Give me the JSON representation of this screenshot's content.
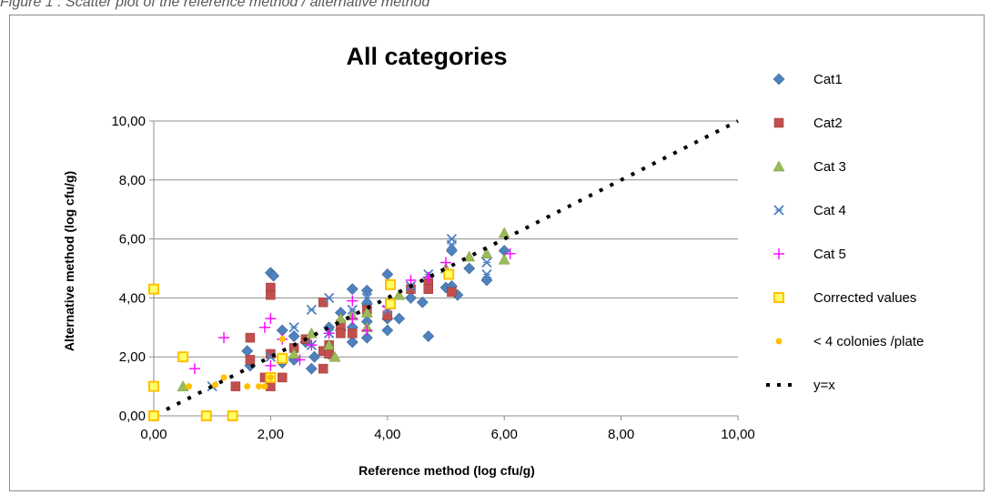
{
  "caption": "Figure 1 : Scatter plot of the reference method / alternative method",
  "chart_data": {
    "type": "scatter",
    "title": "All categories",
    "xlabel": "Reference method (log cfu/g)",
    "ylabel": "Alternative method (log cfu/g)",
    "xlim": [
      0,
      10
    ],
    "ylim": [
      0,
      10
    ],
    "xticks": [
      "0,00",
      "2,00",
      "4,00",
      "6,00",
      "8,00",
      "10,00"
    ],
    "yticks": [
      "0,00",
      "2,00",
      "4,00",
      "6,00",
      "8,00",
      "10,00"
    ],
    "grid": "horizontal",
    "legend_position": "right",
    "series": [
      {
        "name": "Cat1",
        "marker": "diamond",
        "color": "#4f81bd",
        "points": [
          [
            1.6,
            2.2
          ],
          [
            1.65,
            1.7
          ],
          [
            2.0,
            4.85
          ],
          [
            2.05,
            4.75
          ],
          [
            2.2,
            2.9
          ],
          [
            2.2,
            1.8
          ],
          [
            2.4,
            2.7
          ],
          [
            2.4,
            1.9
          ],
          [
            2.6,
            2.5
          ],
          [
            2.7,
            1.6
          ],
          [
            2.75,
            2.0
          ],
          [
            3.0,
            2.1
          ],
          [
            3.0,
            3.0
          ],
          [
            3.2,
            3.5
          ],
          [
            3.2,
            2.9
          ],
          [
            3.4,
            4.3
          ],
          [
            3.4,
            3.0
          ],
          [
            3.4,
            2.5
          ],
          [
            3.65,
            4.25
          ],
          [
            3.65,
            3.8
          ],
          [
            3.65,
            3.2
          ],
          [
            3.65,
            2.65
          ],
          [
            4.0,
            4.8
          ],
          [
            4.0,
            3.3
          ],
          [
            4.0,
            2.9
          ],
          [
            4.2,
            3.3
          ],
          [
            4.4,
            4.0
          ],
          [
            4.6,
            3.85
          ],
          [
            4.7,
            2.7
          ],
          [
            5.0,
            4.35
          ],
          [
            5.1,
            5.6
          ],
          [
            5.1,
            4.4
          ],
          [
            5.2,
            4.1
          ],
          [
            5.4,
            5.0
          ],
          [
            5.7,
            4.6
          ],
          [
            6.0,
            5.6
          ]
        ]
      },
      {
        "name": "Cat2",
        "marker": "square",
        "color": "#c0504d",
        "points": [
          [
            1.4,
            1.0
          ],
          [
            1.65,
            2.65
          ],
          [
            1.65,
            1.9
          ],
          [
            1.9,
            1.3
          ],
          [
            2.0,
            4.35
          ],
          [
            2.0,
            4.1
          ],
          [
            2.0,
            2.1
          ],
          [
            2.0,
            1.0
          ],
          [
            2.2,
            1.3
          ],
          [
            2.4,
            2.3
          ],
          [
            2.6,
            2.6
          ],
          [
            2.9,
            3.85
          ],
          [
            2.9,
            2.2
          ],
          [
            2.9,
            1.6
          ],
          [
            3.0,
            2.4
          ],
          [
            3.0,
            2.1
          ],
          [
            3.2,
            3.1
          ],
          [
            3.2,
            2.8
          ],
          [
            3.4,
            2.8
          ],
          [
            3.65,
            3.6
          ],
          [
            4.0,
            3.4
          ],
          [
            4.4,
            4.3
          ],
          [
            4.7,
            4.5
          ],
          [
            4.7,
            4.3
          ],
          [
            5.1,
            4.2
          ]
        ]
      },
      {
        "name": "Cat 3",
        "marker": "triangle",
        "color": "#9bbb59",
        "points": [
          [
            0.5,
            1.0
          ],
          [
            2.4,
            2.1
          ],
          [
            2.7,
            2.8
          ],
          [
            3.0,
            2.4
          ],
          [
            3.1,
            2.0
          ],
          [
            3.2,
            3.3
          ],
          [
            3.4,
            3.4
          ],
          [
            3.65,
            3.0
          ],
          [
            3.65,
            3.5
          ],
          [
            4.2,
            4.1
          ],
          [
            5.0,
            5.0
          ],
          [
            5.4,
            5.4
          ],
          [
            5.7,
            5.5
          ],
          [
            6.0,
            6.2
          ],
          [
            6.0,
            5.3
          ]
        ]
      },
      {
        "name": "Cat 4",
        "marker": "x",
        "color": "#4f81bd",
        "points": [
          [
            1.0,
            1.0
          ],
          [
            2.0,
            2.0
          ],
          [
            2.4,
            3.0
          ],
          [
            2.7,
            3.6
          ],
          [
            2.7,
            2.4
          ],
          [
            3.0,
            4.0
          ],
          [
            3.0,
            2.8
          ],
          [
            3.4,
            3.6
          ],
          [
            3.65,
            4.0
          ],
          [
            4.0,
            3.6
          ],
          [
            4.4,
            4.4
          ],
          [
            4.7,
            4.8
          ],
          [
            5.1,
            6.0
          ],
          [
            5.1,
            5.8
          ],
          [
            5.7,
            4.8
          ],
          [
            5.7,
            5.2
          ]
        ]
      },
      {
        "name": "Cat 5",
        "marker": "plus",
        "color": "#ff00ff",
        "points": [
          [
            0.7,
            1.6
          ],
          [
            1.2,
            2.65
          ],
          [
            1.9,
            3.0
          ],
          [
            2.0,
            3.3
          ],
          [
            2.0,
            1.7
          ],
          [
            2.2,
            2.6
          ],
          [
            2.5,
            1.9
          ],
          [
            2.7,
            2.4
          ],
          [
            3.0,
            2.8
          ],
          [
            3.4,
            3.9
          ],
          [
            3.4,
            3.3
          ],
          [
            3.65,
            2.9
          ],
          [
            4.0,
            3.7
          ],
          [
            4.4,
            4.6
          ],
          [
            4.7,
            4.7
          ],
          [
            5.0,
            5.2
          ],
          [
            6.1,
            5.5
          ]
        ]
      },
      {
        "name": "Corrected values",
        "marker": "square-hollow",
        "color": "#ffc000",
        "points": [
          [
            0.0,
            4.3
          ],
          [
            0.0,
            1.0
          ],
          [
            0.0,
            0.0
          ],
          [
            0.5,
            2.0
          ],
          [
            0.9,
            0.0
          ],
          [
            1.35,
            0.0
          ],
          [
            2.2,
            1.95
          ],
          [
            2.0,
            1.3
          ],
          [
            4.05,
            4.45
          ],
          [
            4.05,
            3.8
          ],
          [
            5.05,
            4.8
          ]
        ]
      },
      {
        "name": "< 4 colonies /plate",
        "marker": "circle",
        "color": "#ffc000",
        "points": [
          [
            0.6,
            1.0
          ],
          [
            1.05,
            1.05
          ],
          [
            1.2,
            1.3
          ],
          [
            1.6,
            1.0
          ],
          [
            1.8,
            1.0
          ],
          [
            1.9,
            1.0
          ],
          [
            2.0,
            1.3
          ],
          [
            2.2,
            2.6
          ]
        ]
      },
      {
        "name": "y=x",
        "marker": "dotted-line",
        "color": "#000000",
        "points": [
          [
            0.0,
            0.0
          ],
          [
            10.0,
            10.0
          ]
        ]
      }
    ]
  }
}
